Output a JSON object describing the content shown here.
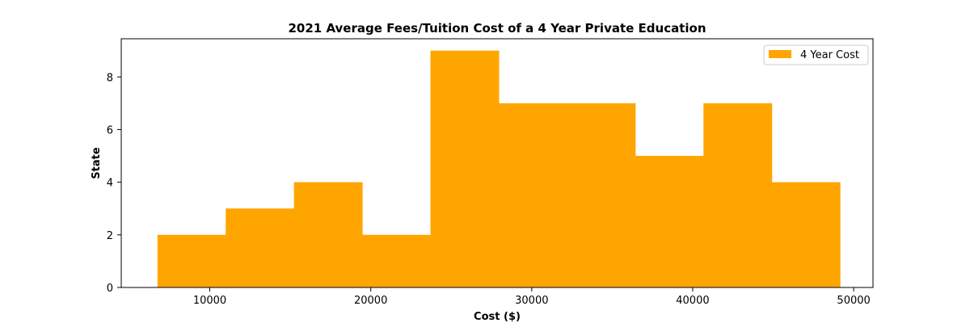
{
  "chart_data": {
    "type": "bar",
    "title": "2021 Average Fees/Tuition Cost of a 4 Year Private Education",
    "xlabel": "Cost ($)",
    "ylabel": "State",
    "xlim": [
      4500,
      51200
    ],
    "ylim": [
      0,
      9.45
    ],
    "x_ticks": [
      10000,
      20000,
      30000,
      40000,
      50000
    ],
    "y_ticks": [
      0,
      2,
      4,
      6,
      8
    ],
    "grid": false,
    "legend_position": "top-right",
    "series": [
      {
        "name": "4 Year Cost",
        "color": "#ffa500",
        "bin_edges": [
          6750,
          10990,
          15230,
          19470,
          23710,
          27950,
          32190,
          36430,
          40670,
          44910,
          49150
        ],
        "values": [
          2,
          3,
          4,
          2,
          9,
          7,
          7,
          5,
          7,
          4
        ]
      }
    ]
  }
}
